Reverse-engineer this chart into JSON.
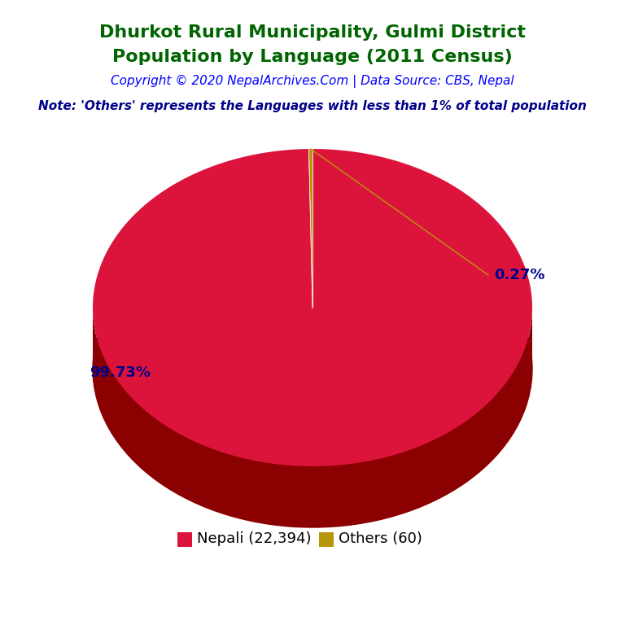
{
  "title_line1": "Dhurkot Rural Municipality, Gulmi District",
  "title_line2": "Population by Language (2011 Census)",
  "title_color": "#006400",
  "copyright_text": "Copyright © 2020 NepalArchives.Com | Data Source: CBS, Nepal",
  "copyright_color": "#0000FF",
  "note_text": "Note: 'Others' represents the Languages with less than 1% of total population",
  "note_color": "#00008B",
  "labels": [
    "Nepali (22,394)",
    "Others (60)"
  ],
  "values": [
    22394,
    60
  ],
  "percentages": [
    "99.73%",
    "0.27%"
  ],
  "colors": [
    "#DC143C",
    "#B8960C"
  ],
  "side_color": "#8B0000",
  "background_color": "#FFFFFF",
  "legend_text_color": "#000000",
  "pct_label_color": "#00008B",
  "title_fontsize": 16,
  "copyright_fontsize": 11,
  "note_fontsize": 11,
  "legend_fontsize": 13
}
